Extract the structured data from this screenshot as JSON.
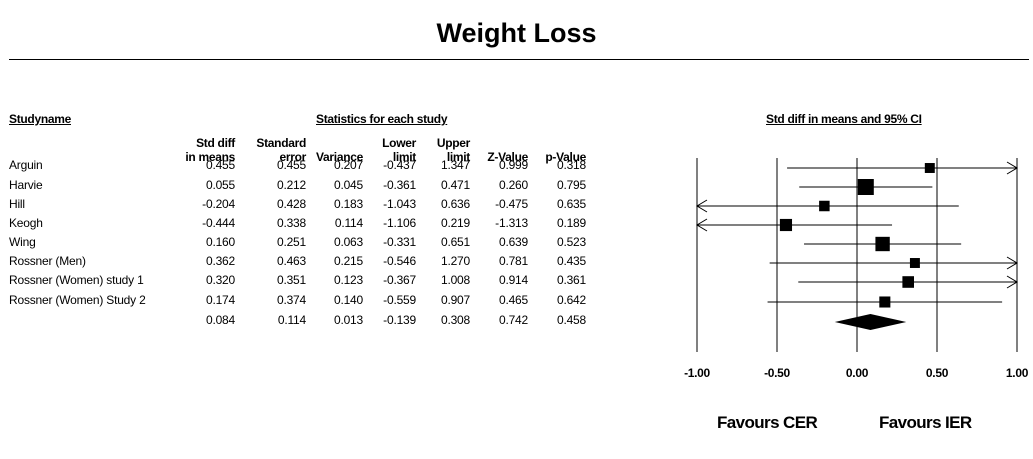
{
  "chart_data": {
    "type": "forest",
    "title": "Weight Loss",
    "headers": {
      "study_name": "Studyname",
      "stats_group": "Statistics for each study",
      "plot_header": "Std diff in means and 95% CI",
      "columns": [
        [
          "Std diff",
          "in means"
        ],
        [
          "Standard",
          "error"
        ],
        [
          "",
          "Variance"
        ],
        [
          "Lower",
          "limit"
        ],
        [
          "Upper",
          "limit"
        ],
        [
          "",
          "Z-Value"
        ],
        [
          "",
          "p-Value"
        ]
      ]
    },
    "studies": [
      {
        "name": "Arguin",
        "values": [
          "0.455",
          "0.455",
          "0.207",
          "-0.437",
          "1.347",
          "0.999",
          "0.318"
        ],
        "point": 0.455,
        "lower": -0.437,
        "upper": 1.347,
        "marker": 0.45
      },
      {
        "name": "Harvie",
        "values": [
          "0.055",
          "0.212",
          "0.045",
          "-0.361",
          "0.471",
          "0.260",
          "0.795"
        ],
        "point": 0.055,
        "lower": -0.361,
        "upper": 0.471,
        "marker": 1.0
      },
      {
        "name": "Hill",
        "values": [
          "-0.204",
          "0.428",
          "0.183",
          "-1.043",
          "0.636",
          "-0.475",
          "0.635"
        ],
        "point": -0.204,
        "lower": -1.043,
        "upper": 0.636,
        "marker": 0.5
      },
      {
        "name": "Keogh",
        "values": [
          "-0.444",
          "0.338",
          "0.114",
          "-1.106",
          "0.219",
          "-1.313",
          "0.189"
        ],
        "point": -0.444,
        "lower": -1.106,
        "upper": 0.219,
        "marker": 0.65
      },
      {
        "name": "Wing",
        "values": [
          "0.160",
          "0.251",
          "0.063",
          "-0.331",
          "0.651",
          "0.639",
          "0.523"
        ],
        "point": 0.16,
        "lower": -0.331,
        "upper": 0.651,
        "marker": 0.85
      },
      {
        "name": "Rossner  (Men)",
        "values": [
          "0.362",
          "0.463",
          "0.215",
          "-0.546",
          "1.270",
          "0.781",
          "0.435"
        ],
        "point": 0.362,
        "lower": -0.546,
        "upper": 1.27,
        "marker": 0.45
      },
      {
        "name": "Rossner  (Women)  study 1",
        "values": [
          "0.320",
          "0.351",
          "0.123",
          "-0.367",
          "1.008",
          "0.914",
          "0.361"
        ],
        "point": 0.32,
        "lower": -0.367,
        "upper": 1.008,
        "marker": 0.6
      },
      {
        "name": "Rossner  (Women)  Study 2",
        "values": [
          "0.174",
          "0.374",
          "0.140",
          "-0.559",
          "0.907",
          "0.465",
          "0.642"
        ],
        "point": 0.174,
        "lower": -0.559,
        "upper": 0.907,
        "marker": 0.55
      }
    ],
    "summary": {
      "name": "",
      "values": [
        "0.084",
        "0.114",
        "0.013",
        "-0.139",
        "0.308",
        "0.742",
        "0.458"
      ],
      "point": 0.084,
      "lower": -0.139,
      "upper": 0.308
    },
    "x_ticks": [
      "-1.00",
      "-0.50",
      "0.00",
      "0.50",
      "1.00"
    ],
    "xlim": [
      -1,
      1
    ],
    "favours_left": "Favours CER",
    "favours_right": "Favours IER"
  }
}
